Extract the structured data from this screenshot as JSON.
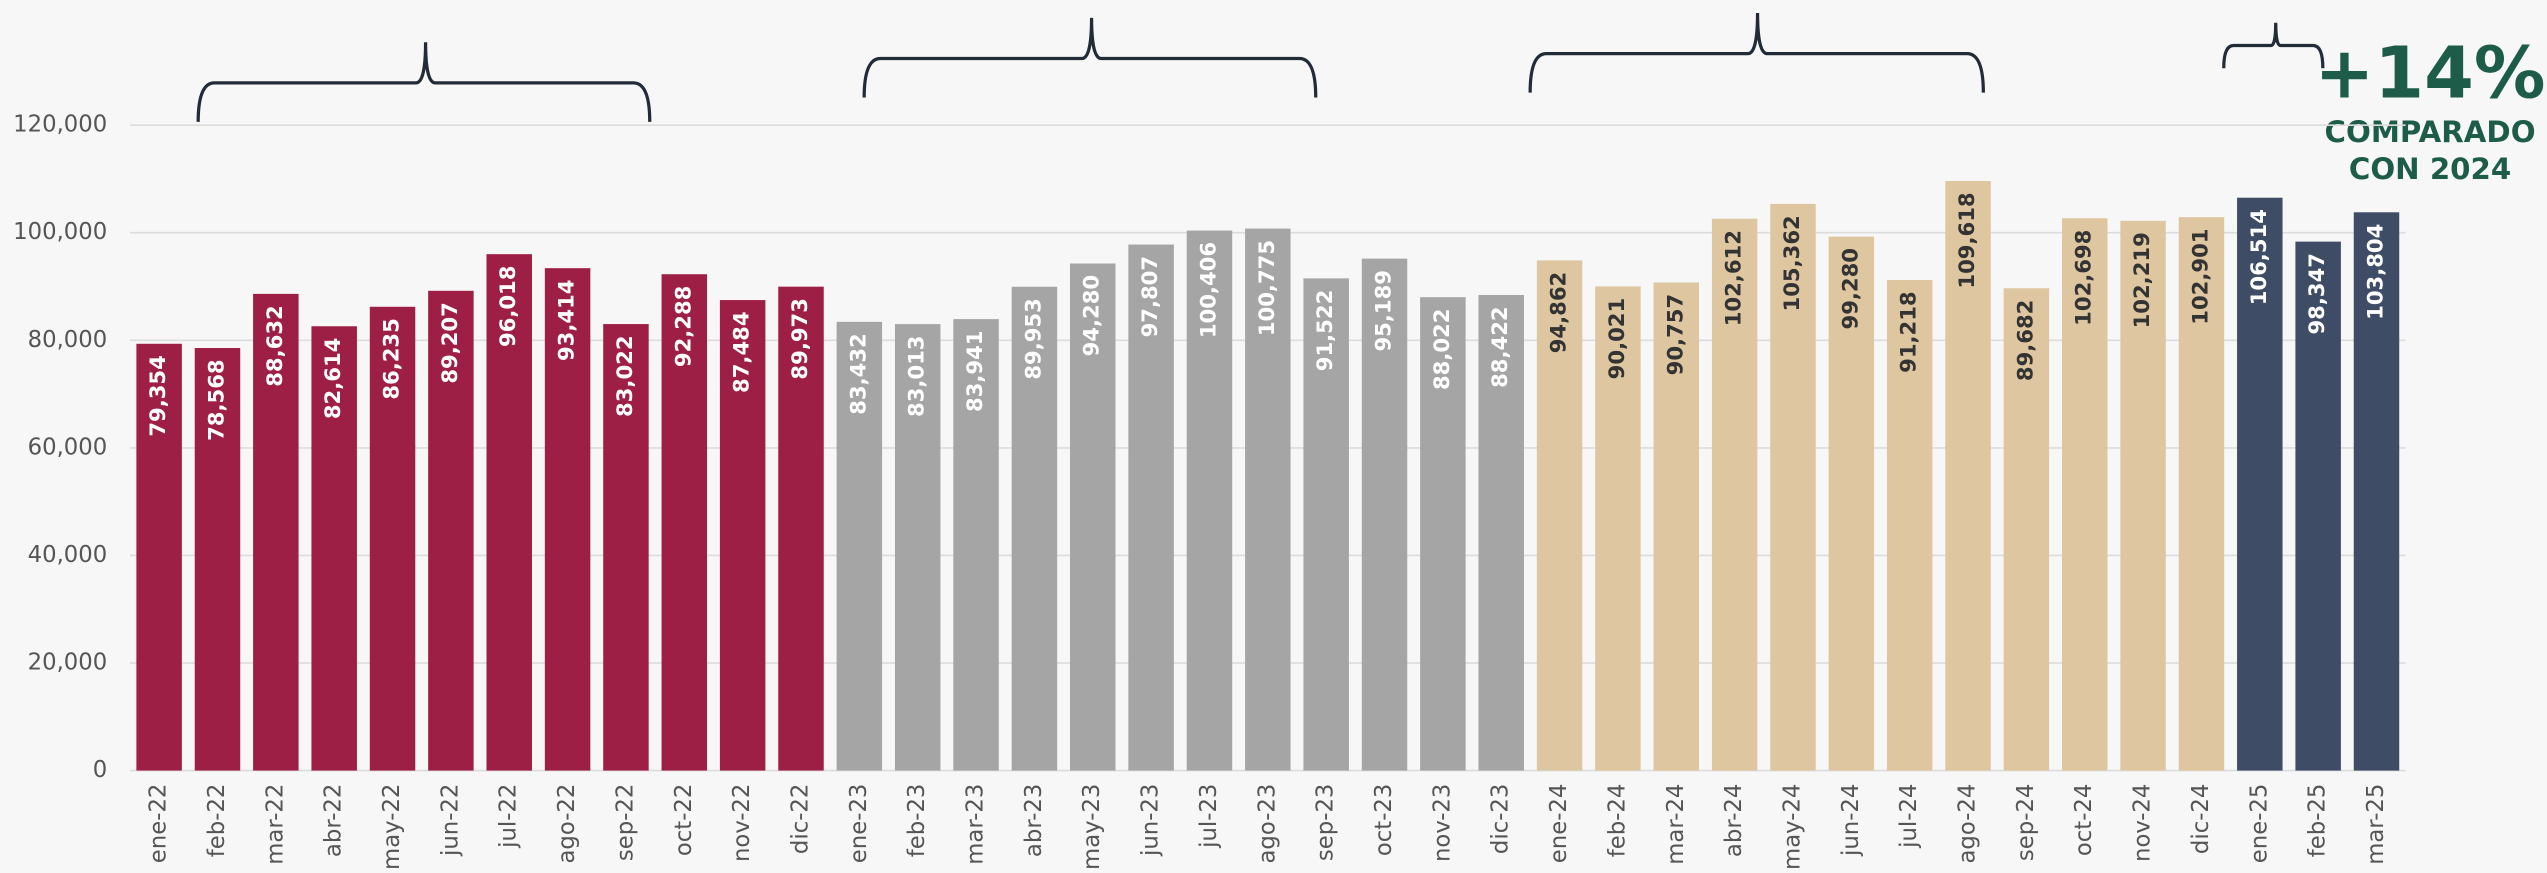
{
  "chart_data": {
    "type": "bar",
    "categories": [
      "ene-22",
      "feb-22",
      "mar-22",
      "abr-22",
      "may-22",
      "jun-22",
      "jul-22",
      "ago-22",
      "sep-22",
      "oct-22",
      "nov-22",
      "dic-22",
      "ene-23",
      "feb-23",
      "mar-23",
      "abr-23",
      "may-23",
      "jun-23",
      "jul-23",
      "ago-23",
      "sep-23",
      "oct-23",
      "nov-23",
      "dic-23",
      "ene-24",
      "feb-24",
      "mar-24",
      "abr-24",
      "may-24",
      "jun-24",
      "jul-24",
      "ago-24",
      "sep-24",
      "oct-24",
      "nov-24",
      "dic-24",
      "ene-25",
      "feb-25",
      "mar-25"
    ],
    "values": [
      79354,
      78568,
      88632,
      82614,
      86235,
      89207,
      96018,
      93414,
      83022,
      92288,
      87484,
      89973,
      83432,
      83013,
      83941,
      89953,
      94280,
      97807,
      100406,
      100775,
      91522,
      95189,
      88022,
      88422,
      94862,
      90021,
      90757,
      102612,
      105362,
      99280,
      91218,
      109618,
      89682,
      102698,
      102219,
      102901,
      106514,
      98347,
      103804
    ],
    "value_labels": [
      "79,354",
      "78,568",
      "88,632",
      "82,614",
      "86,235",
      "89,207",
      "96,018",
      "93,414",
      "83,022",
      "92,288",
      "87,484",
      "89,973",
      "83,432",
      "83,013",
      "83,941",
      "89,953",
      "94,280",
      "97,807",
      "100,406",
      "100,775",
      "91,522",
      "95,189",
      "88,022",
      "88,422",
      "94,862",
      "90,021",
      "90,757",
      "102,612",
      "105,362",
      "99,280",
      "91,218",
      "109,618",
      "89,682",
      "102,698",
      "102,219",
      "102,901",
      "106,514",
      "98,347",
      "103,804"
    ],
    "colors": [
      "#9e1f45",
      "#9e1f45",
      "#9e1f45",
      "#9e1f45",
      "#9e1f45",
      "#9e1f45",
      "#9e1f45",
      "#9e1f45",
      "#9e1f45",
      "#9e1f45",
      "#9e1f45",
      "#9e1f45",
      "#a5a5a5",
      "#a5a5a5",
      "#a5a5a5",
      "#a5a5a5",
      "#a5a5a5",
      "#a5a5a5",
      "#a5a5a5",
      "#a5a5a5",
      "#a5a5a5",
      "#a5a5a5",
      "#a5a5a5",
      "#a5a5a5",
      "#dec7a0",
      "#dec7a0",
      "#dec7a0",
      "#dec7a0",
      "#dec7a0",
      "#dec7a0",
      "#dec7a0",
      "#dec7a0",
      "#dec7a0",
      "#dec7a0",
      "#dec7a0",
      "#dec7a0",
      "#3e4c66",
      "#3e4c66",
      "#3e4c66"
    ],
    "value_label_colors": [
      "#ffffff",
      "#ffffff",
      "#ffffff",
      "#ffffff",
      "#ffffff",
      "#ffffff",
      "#ffffff",
      "#ffffff",
      "#ffffff",
      "#ffffff",
      "#ffffff",
      "#ffffff",
      "#ffffff",
      "#ffffff",
      "#ffffff",
      "#ffffff",
      "#ffffff",
      "#ffffff",
      "#ffffff",
      "#ffffff",
      "#ffffff",
      "#ffffff",
      "#ffffff",
      "#ffffff",
      "#333333",
      "#333333",
      "#333333",
      "#333333",
      "#333333",
      "#333333",
      "#333333",
      "#333333",
      "#333333",
      "#333333",
      "#333333",
      "#333333",
      "#ffffff",
      "#ffffff",
      "#ffffff"
    ],
    "ylim": [
      0,
      120000
    ],
    "yticks": [
      0,
      {
        "value": 20000,
        "label": "20,000"
      },
      {
        "value": 40000,
        "label": "40,000"
      },
      {
        "value": 60000,
        "label": "60,000"
      },
      {
        "value": 80000,
        "label": "80,000"
      },
      {
        "value": 100000,
        "label": "100,000"
      },
      {
        "value": 120000,
        "label": "120,000"
      }
    ],
    "grid": true,
    "annotation": "+14%",
    "annotation_lines": [
      "COMPARADO",
      "CON 2024"
    ]
  }
}
